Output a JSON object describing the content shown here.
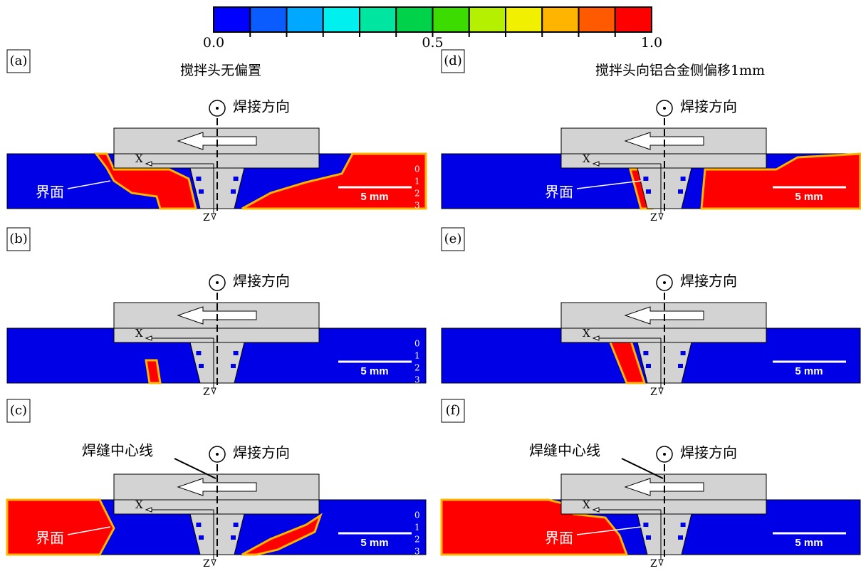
{
  "colorbar": {
    "colors": [
      "#0000ff",
      "#0a5cff",
      "#00a8ff",
      "#00f0f0",
      "#00e6a0",
      "#00d24a",
      "#3cdc00",
      "#b4f000",
      "#f0f000",
      "#ffb400",
      "#ff5a00",
      "#ff0000"
    ],
    "labels": [
      "0.0",
      "0.5",
      "1.0"
    ]
  },
  "columns": [
    {
      "title": "搅拌头无偏置"
    },
    {
      "title": "搅拌头向铝合金侧偏移1mm"
    }
  ],
  "panels": [
    {
      "label": "(a)",
      "direction": "焊接方向",
      "interface": "界面",
      "x_axis": "X",
      "z_axis": "Z",
      "scale": "5 mm",
      "depth_ticks": [
        0,
        1,
        2,
        3
      ]
    },
    {
      "label": "(b)",
      "direction": "焊接方向",
      "x_axis": "X",
      "z_axis": "Z",
      "scale": "5 mm",
      "depth_ticks": [
        0,
        1,
        2,
        3
      ]
    },
    {
      "label": "(c)",
      "direction": "焊接方向",
      "centerline": "焊缝中心线",
      "interface": "界面",
      "x_axis": "X",
      "z_axis": "Z",
      "scale": "5 mm",
      "depth_ticks": [
        0,
        1,
        2,
        3
      ]
    },
    {
      "label": "(d)",
      "direction": "焊接方向",
      "interface": "界面",
      "x_axis": "X",
      "z_axis": "Z",
      "scale": "5 mm"
    },
    {
      "label": "(e)",
      "direction": "焊接方向",
      "x_axis": "X",
      "z_axis": "Z",
      "scale": "5 mm"
    },
    {
      "label": "(f)",
      "direction": "焊接方向",
      "centerline": "焊缝中心线",
      "interface": "界面",
      "x_axis": "X",
      "z_axis": "Z",
      "scale": "5 mm"
    }
  ]
}
